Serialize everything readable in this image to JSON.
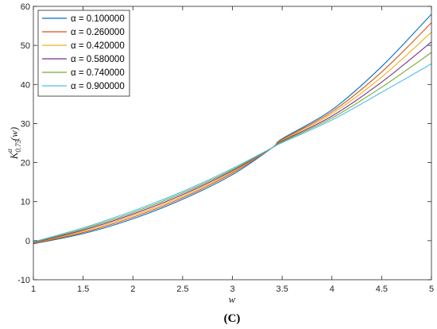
{
  "chart_data": {
    "type": "line",
    "xlabel": "w",
    "ylabel_main": "K",
    "ylabel_sub": "0.75",
    "ylabel_sup": "α",
    "ylabel_tail": "(w)",
    "xlim": [
      1,
      5
    ],
    "ylim": [
      -10,
      60
    ],
    "xticks": [
      1,
      1.5,
      2,
      2.5,
      3,
      3.5,
      4,
      4.5,
      5
    ],
    "xtick_labels": [
      "1",
      "1.5",
      "2",
      "2.5",
      "3",
      "3.5",
      "4",
      "4.5",
      "5"
    ],
    "yticks": [
      -10,
      0,
      10,
      20,
      30,
      40,
      50,
      60
    ],
    "ytick_labels": [
      "-10",
      "0",
      "10",
      "20",
      "30",
      "40",
      "50",
      "60"
    ],
    "grid": false,
    "legend_position": "top-left",
    "caption": "(C)",
    "x": [
      1,
      1.5,
      2,
      2.5,
      3,
      3.4,
      3.5,
      4,
      4.5,
      5
    ],
    "series": [
      {
        "name": "α = 0.100000",
        "color": "#0072BD",
        "values": [
          -0.8,
          1.8,
          5.6,
          10.6,
          16.9,
          23.8,
          26.1,
          33.5,
          44.6,
          58.0
        ]
      },
      {
        "name": "α = 0.260000",
        "color": "#D95319",
        "values": [
          -0.7,
          2.1,
          6.0,
          11.0,
          17.3,
          23.8,
          25.9,
          33.0,
          43.2,
          55.8
        ]
      },
      {
        "name": "α = 0.420000",
        "color": "#EDB120",
        "values": [
          -0.6,
          2.4,
          6.4,
          11.4,
          17.6,
          23.8,
          25.7,
          32.5,
          41.9,
          53.4
        ]
      },
      {
        "name": "α = 0.580000",
        "color": "#7E2F8E",
        "values": [
          -0.5,
          2.7,
          6.8,
          11.8,
          17.9,
          23.8,
          25.5,
          31.9,
          40.6,
          50.9
        ]
      },
      {
        "name": "α = 0.740000",
        "color": "#77AC30",
        "values": [
          -0.4,
          3.0,
          7.2,
          12.2,
          18.2,
          23.8,
          25.3,
          31.4,
          39.3,
          48.2
        ]
      },
      {
        "name": "α = 0.900000",
        "color": "#4DBEEE",
        "values": [
          -0.3,
          3.3,
          7.6,
          12.6,
          18.5,
          23.8,
          25.1,
          30.9,
          38.0,
          45.3
        ]
      }
    ]
  }
}
